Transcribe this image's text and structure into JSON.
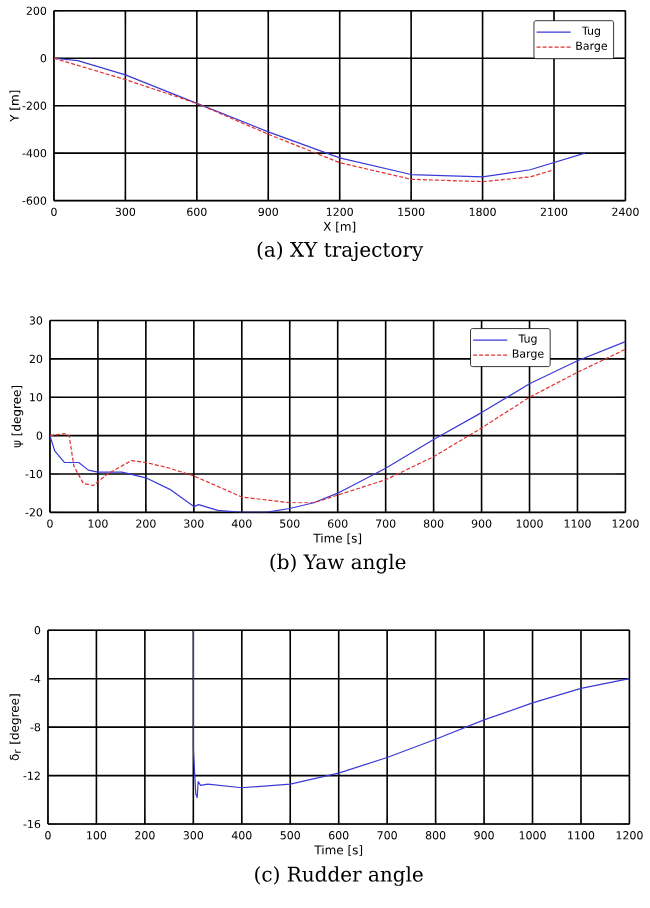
{
  "chart_data": [
    {
      "type": "line",
      "title": "(a)  XY  trajectory",
      "xlabel": "X [m]",
      "ylabel": "Y [m]",
      "xlim": [
        0,
        2400
      ],
      "ylim": [
        -600,
        200
      ],
      "xticks": [
        0,
        300,
        600,
        900,
        1200,
        1500,
        1800,
        2100,
        2400
      ],
      "yticks": [
        -600,
        -400,
        -200,
        0,
        200
      ],
      "grid": true,
      "legend": "top right",
      "series": [
        {
          "name": "Tug",
          "color": "#3a3ad8",
          "line_style": "solid",
          "x": [
            0,
            100,
            300,
            600,
            900,
            1200,
            1500,
            1800,
            2000,
            2230
          ],
          "values": [
            0,
            -10,
            -70,
            -190,
            -310,
            -420,
            -490,
            -500,
            -470,
            -400
          ]
        },
        {
          "name": "Barge",
          "color": "#e03030",
          "line_style": "dashed",
          "x": [
            0,
            300,
            600,
            900,
            1200,
            1500,
            1800,
            2000,
            2100
          ],
          "values": [
            0,
            -90,
            -190,
            -320,
            -440,
            -510,
            -520,
            -500,
            -470
          ]
        }
      ]
    },
    {
      "type": "line",
      "title": "(b)  Yaw  angle",
      "xlabel": "Time [s]",
      "ylabel": "ψ [degree]",
      "xlim": [
        0,
        1200
      ],
      "ylim": [
        -20,
        30
      ],
      "xticks": [
        0,
        100,
        200,
        300,
        400,
        500,
        600,
        700,
        800,
        900,
        1000,
        1100,
        1200
      ],
      "yticks": [
        -20,
        -10,
        0,
        10,
        20,
        30
      ],
      "grid": true,
      "legend": "top",
      "series": [
        {
          "name": "Tug",
          "color": "#3a3ad8",
          "line_style": "solid",
          "x": [
            0,
            10,
            30,
            50,
            60,
            80,
            100,
            150,
            200,
            250,
            300,
            310,
            350,
            400,
            450,
            500,
            550,
            600,
            700,
            800,
            900,
            1000,
            1100,
            1200
          ],
          "values": [
            0,
            -4,
            -7,
            -7,
            -7,
            -9,
            -9.5,
            -9.5,
            -11,
            -14,
            -18.5,
            -18,
            -19.5,
            -20,
            -20,
            -19,
            -17.5,
            -15,
            -8.5,
            -1,
            6,
            13.5,
            19.5,
            24.5
          ]
        },
        {
          "name": "Barge",
          "color": "#e03030",
          "line_style": "dashed",
          "x": [
            0,
            30,
            40,
            50,
            70,
            90,
            120,
            170,
            200,
            250,
            300,
            400,
            500,
            550,
            600,
            700,
            800,
            900,
            1000,
            1100,
            1200
          ],
          "values": [
            0,
            0.5,
            0,
            -8,
            -12.5,
            -13,
            -10,
            -6.5,
            -7,
            -8.5,
            -10.5,
            -16,
            -17.5,
            -17.5,
            -15.5,
            -11.5,
            -5.5,
            2,
            10,
            16.5,
            22.5
          ]
        }
      ]
    },
    {
      "type": "line",
      "title": "(c)  Rudder  angle",
      "xlabel": "Time [s]",
      "ylabel": "δ$_{r}$ [degree]",
      "xlim": [
        0,
        1200
      ],
      "ylim": [
        -16,
        0
      ],
      "xticks": [
        0,
        100,
        200,
        300,
        400,
        500,
        600,
        700,
        800,
        900,
        1000,
        1100,
        1200
      ],
      "yticks": [
        -16,
        -12,
        -8,
        -4,
        0
      ],
      "grid": true,
      "series": [
        {
          "color": "#3a3ad8",
          "line_style": "solid",
          "x": [
            300,
            300,
            303,
            305,
            308,
            310,
            315,
            330,
            400,
            500,
            600,
            700,
            800,
            900,
            1000,
            1100,
            1200
          ],
          "values": [
            0,
            -9.7,
            -12,
            -13.5,
            -13.8,
            -12.5,
            -12.8,
            -12.7,
            -13,
            -12.7,
            -11.8,
            -10.5,
            -9,
            -7.4,
            -6,
            -4.8,
            -4
          ]
        }
      ]
    }
  ]
}
